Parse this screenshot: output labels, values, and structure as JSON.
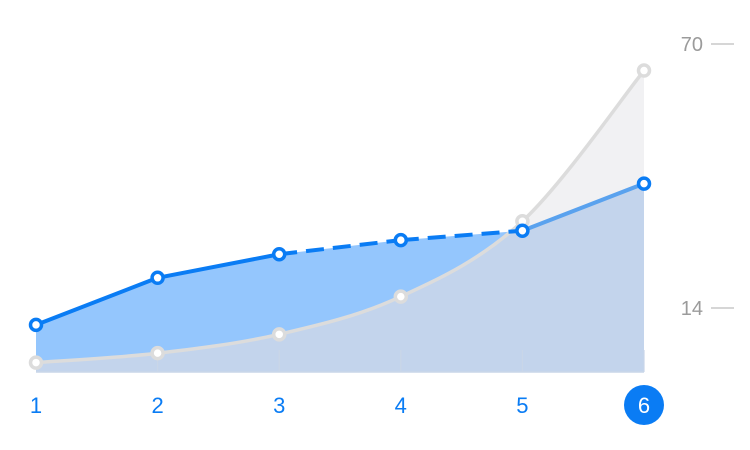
{
  "chart_data": {
    "type": "area",
    "x": [
      1,
      2,
      3,
      4,
      5,
      6
    ],
    "x_tick_labels": [
      "1",
      "2",
      "3",
      "4",
      "5",
      "6"
    ],
    "selected_x": "6",
    "y_ticks": [
      14,
      70
    ],
    "ylim": [
      0,
      72
    ],
    "series": [
      {
        "values": [
          10,
          20,
          25,
          28,
          30,
          40
        ],
        "color": "#0a7cf4",
        "dashed_segment": [
          3,
          4
        ]
      },
      {
        "values": [
          2,
          4,
          8,
          16,
          32,
          64
        ],
        "color": "#dcdcdc"
      }
    ],
    "colors": {
      "accent": "#0a7cf4",
      "blue_fill": "#94c6fd",
      "blue_fill_light": "#b7d2f5",
      "grey_line": "#dcdcdc",
      "grey_fill": "#f1f1f3",
      "overlap_fill": "#c3d4ec",
      "axis": "#c9d6e8",
      "tick_text": "#9b9b9b"
    }
  }
}
